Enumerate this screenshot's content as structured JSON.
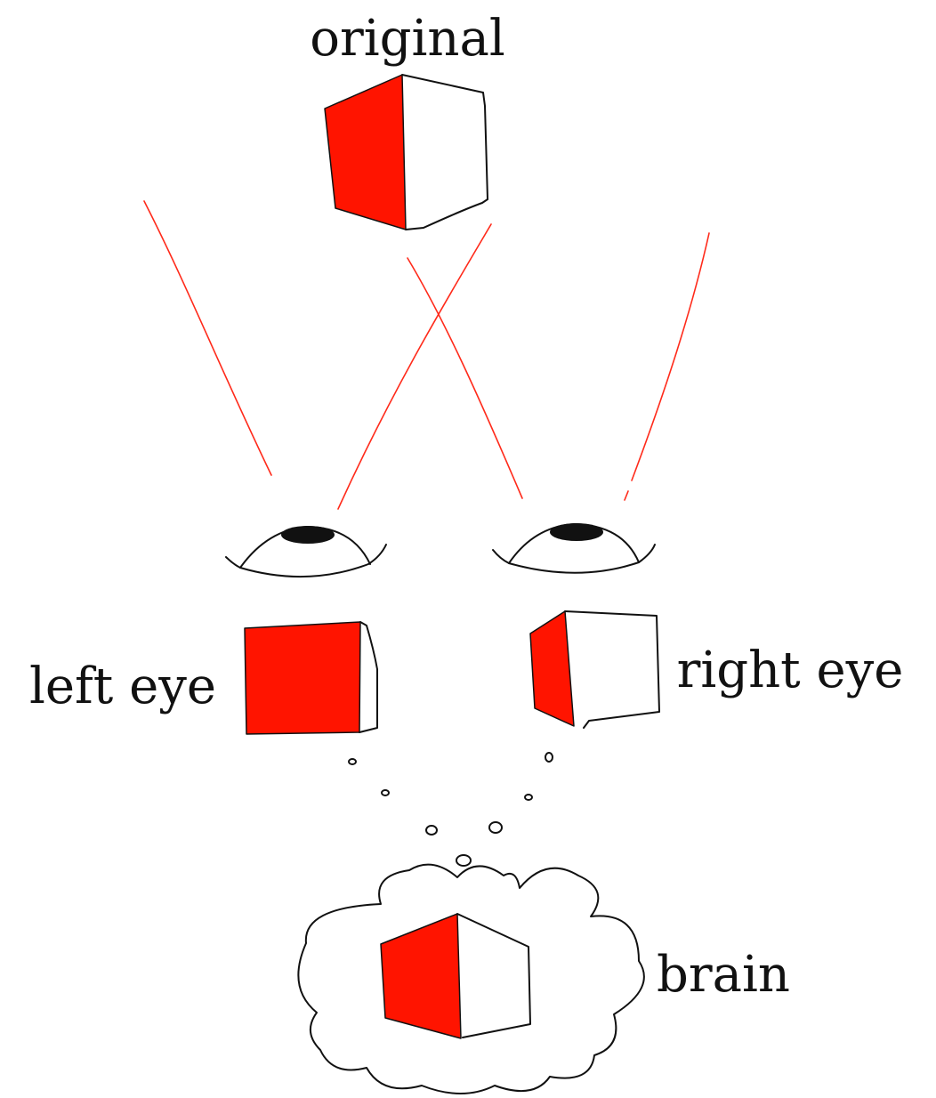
{
  "labels": {
    "original": "original",
    "left_eye": "left eye",
    "right_eye": "right eye",
    "brain": "brain"
  },
  "colors": {
    "face_red": "#ff1400",
    "ray_red": "#ff2a1a",
    "ink": "#111111",
    "background": "#ffffff"
  },
  "icons": {
    "cube": "cube-icon",
    "eye": "eye-icon",
    "thought_cloud": "thought-cloud-icon"
  }
}
